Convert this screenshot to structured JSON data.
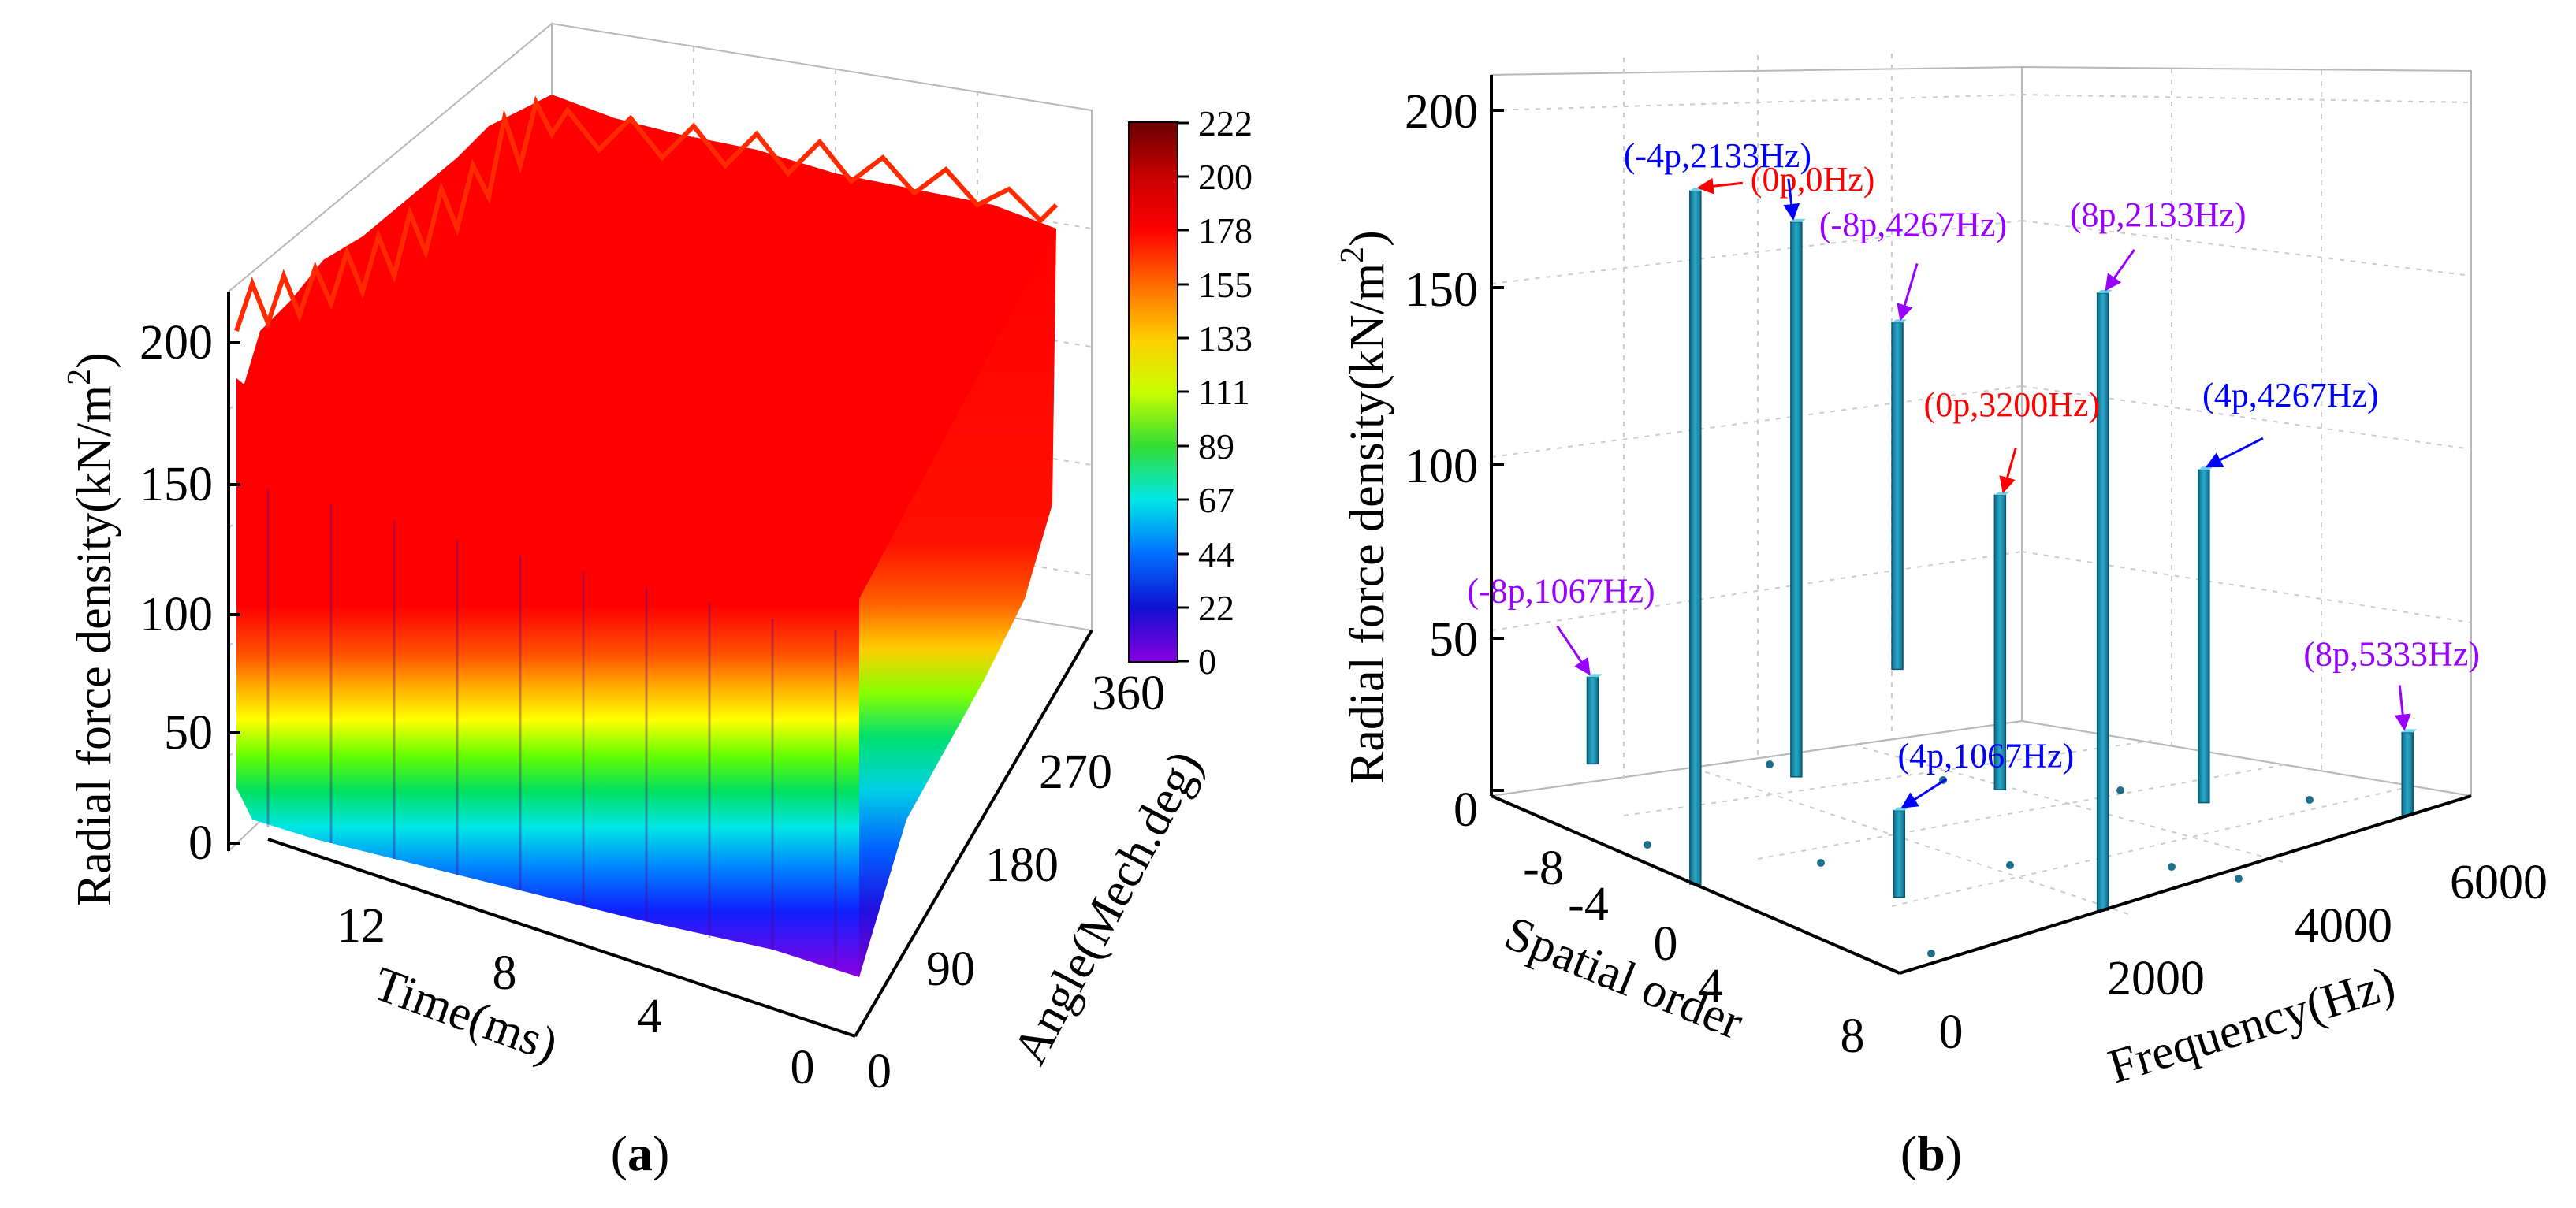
{
  "chart_data": [
    {
      "panel": "a",
      "type": "surface3d",
      "caption": "a",
      "zlabel": "Radial  force density(kN/m",
      "zlabel_sup": "2",
      "zlabel_close": ")",
      "xlabel": "Time(ms)",
      "ylabel": "Angle(Mech.deg)",
      "z_ticks": [
        "0",
        "50",
        "100",
        "150",
        "200"
      ],
      "time_ticks": [
        "12",
        "8",
        "4",
        "0"
      ],
      "angle_ticks": [
        "0",
        "90",
        "180",
        "270",
        "360"
      ],
      "zlim": [
        0,
        222
      ],
      "colorbar": {
        "ticks": [
          "222",
          "200",
          "178",
          "155",
          "133",
          "111",
          "89",
          "67",
          "44",
          "22",
          "0"
        ],
        "colors": [
          "#6a0000",
          "#c80000",
          "#ff0000",
          "#ff6a00",
          "#ffcc00",
          "#c8ff00",
          "#33dd33",
          "#00e6e6",
          "#0070ff",
          "#1010d0",
          "#8a00e0"
        ]
      },
      "surface_colors": {
        "top": "#ff0000",
        "band_colors": [
          "#ff0000",
          "#ff3000",
          "#ff7a00",
          "#ffcc00",
          "#b8ff00",
          "#22ee44",
          "#00e0e0",
          "#0090ff",
          "#1030ff",
          "#4010d0",
          "#8a00e0"
        ]
      }
    },
    {
      "panel": "b",
      "type": "bar3d",
      "caption": "b",
      "zlabel": "Radial  force density(kN/m",
      "zlabel_sup": "2",
      "zlabel_close": ")",
      "xlabel": "Spatial order",
      "ylabel": "Frequency(Hz)",
      "z_ticks": [
        "0",
        "50",
        "100",
        "150",
        "200"
      ],
      "order_ticks": [
        "-8",
        "-4",
        "0",
        "4",
        "8"
      ],
      "freq_ticks": [
        "0",
        "2000",
        "4000",
        "6000"
      ],
      "zlim": [
        0,
        200
      ],
      "bar_color": "#1e95b4",
      "bars": [
        {
          "order": 0,
          "freq": 0,
          "value": 200,
          "label": "(0p,0Hz)",
          "color": "#ff0000"
        },
        {
          "order": -4,
          "freq": 2133,
          "value": 160,
          "label": "(-4p,2133Hz)",
          "color": "#0000ff"
        },
        {
          "order": 8,
          "freq": 2133,
          "value": 178,
          "label": "(8p,2133Hz)",
          "color": "#9900ff"
        },
        {
          "order": -8,
          "freq": 4267,
          "value": 100,
          "label": "(-8p,4267Hz)",
          "color": "#9900ff"
        },
        {
          "order": 0,
          "freq": 3200,
          "value": 85,
          "label": "(0p,3200Hz)",
          "color": "#ff0000"
        },
        {
          "order": 4,
          "freq": 4267,
          "value": 96,
          "label": "(4p,4267Hz)",
          "color": "#0000ff"
        },
        {
          "order": -8,
          "freq": 1067,
          "value": 25,
          "label": "(-8p,1067Hz)",
          "color": "#9900ff"
        },
        {
          "order": 4,
          "freq": 1067,
          "value": 25,
          "label": "(4p,1067Hz)",
          "color": "#0000ff"
        },
        {
          "order": 8,
          "freq": 5333,
          "value": 24,
          "label": "(8p,5333Hz)",
          "color": "#9900ff"
        }
      ]
    }
  ]
}
